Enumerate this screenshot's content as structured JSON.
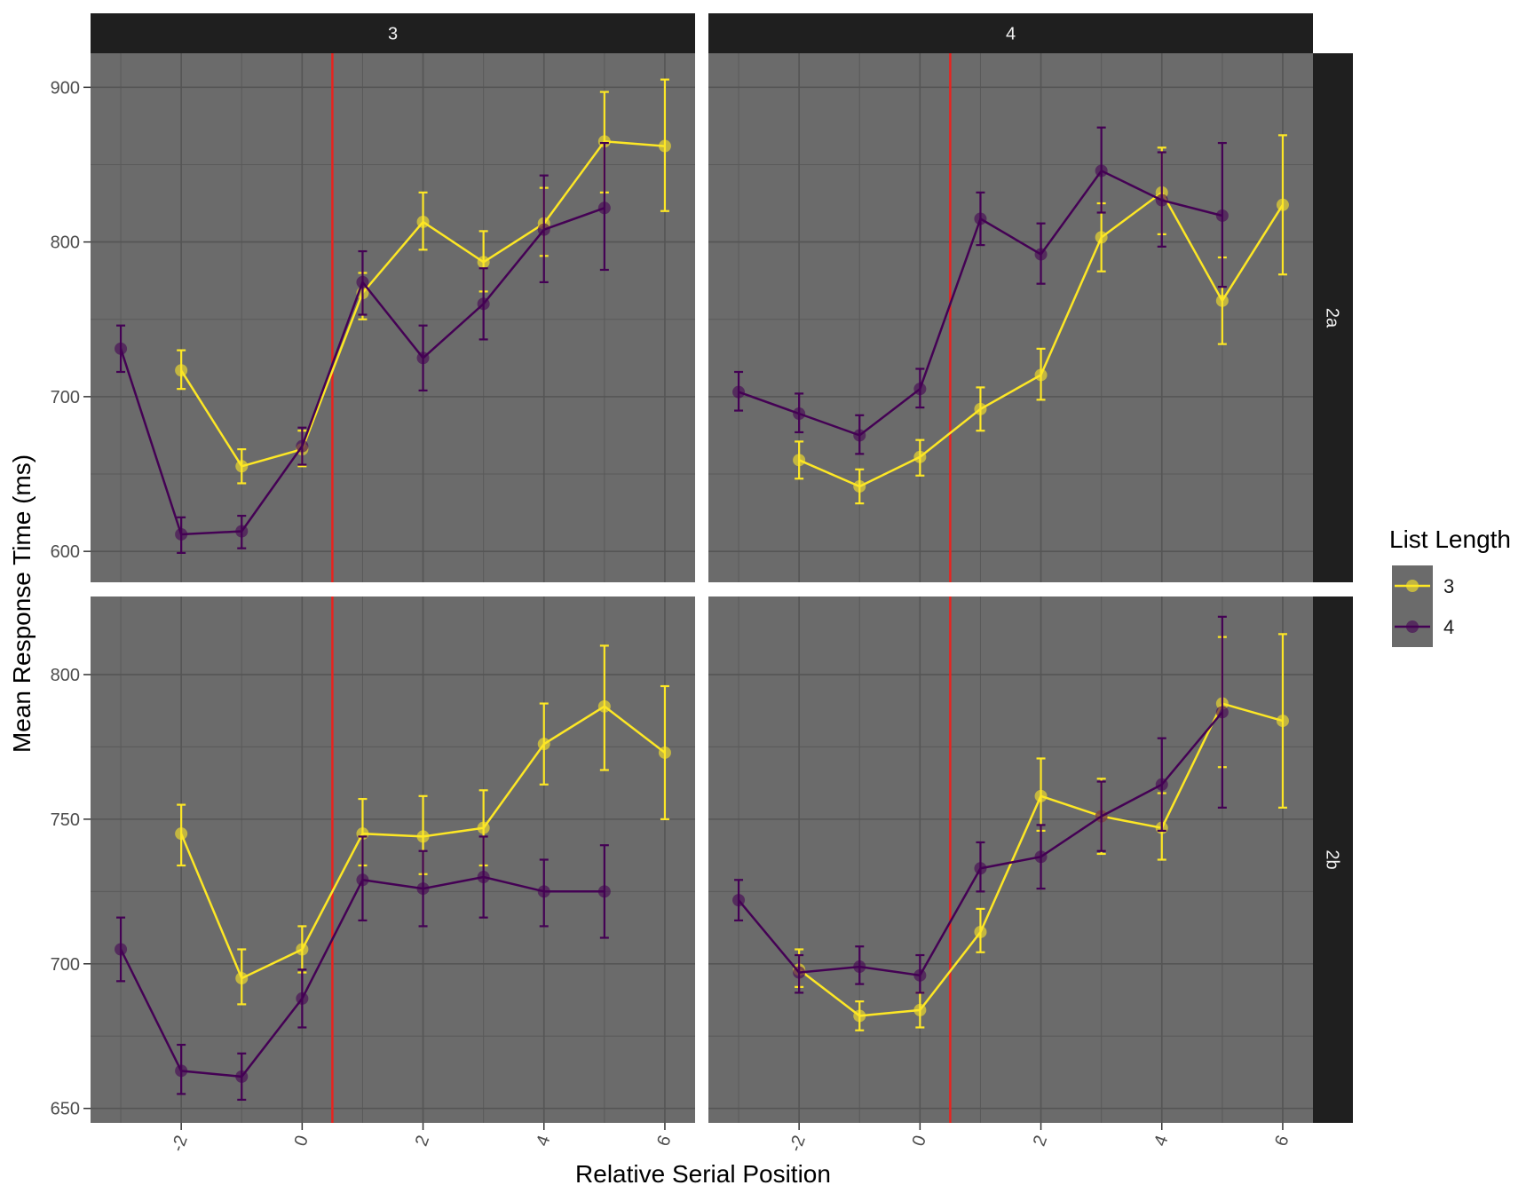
{
  "chart_data": {
    "type": "line",
    "xlabel": "Relative Serial Position",
    "ylabel": "Mean Response Time (ms)",
    "col_facets": [
      "3",
      "4"
    ],
    "row_facets": [
      "2a",
      "2b"
    ],
    "x_ticks": [
      "-2",
      "0",
      "2",
      "4",
      "6"
    ],
    "xlim": [
      -3.5,
      6.5
    ],
    "reference_line_x": 0.5,
    "legend": {
      "title": "List Length",
      "position": "right",
      "entries": [
        "3",
        "4"
      ]
    },
    "colors": {
      "3": "#FDE725",
      "4": "#440154",
      "reference": "#E8231E",
      "panel_bg": "#6B6B6B",
      "strip_bg": "#1F1F1F"
    },
    "rows": [
      {
        "label": "2a",
        "ylim": [
          580,
          922
        ],
        "y_ticks": [
          600,
          700,
          800,
          900
        ],
        "panels": [
          {
            "column": "3",
            "series": [
              {
                "name": "3",
                "x": [
                  -2,
                  -1,
                  0,
                  1,
                  2,
                  3,
                  4,
                  5,
                  6
                ],
                "y": [
                  717,
                  655,
                  666,
                  767,
                  813,
                  787,
                  812,
                  865,
                  862
                ],
                "lo": [
                  705,
                  644,
                  655,
                  750,
                  795,
                  768,
                  791,
                  832,
                  820
                ],
                "hi": [
                  730,
                  666,
                  678,
                  780,
                  832,
                  807,
                  835,
                  897,
                  905
                ]
              },
              {
                "name": "4",
                "x": [
                  -3,
                  -2,
                  -1,
                  0,
                  1,
                  2,
                  3,
                  4,
                  5
                ],
                "y": [
                  731,
                  611,
                  613,
                  668,
                  774,
                  725,
                  760,
                  808,
                  822
                ],
                "lo": [
                  716,
                  599,
                  602,
                  656,
                  753,
                  704,
                  737,
                  774,
                  782
                ],
                "hi": [
                  746,
                  622,
                  623,
                  680,
                  794,
                  746,
                  783,
                  843,
                  864
                ]
              }
            ]
          },
          {
            "column": "4",
            "series": [
              {
                "name": "3",
                "x": [
                  -2,
                  -1,
                  0,
                  1,
                  2,
                  3,
                  4,
                  5,
                  6
                ],
                "y": [
                  659,
                  642,
                  661,
                  692,
                  714,
                  803,
                  832,
                  762,
                  824
                ],
                "lo": [
                  647,
                  631,
                  649,
                  678,
                  698,
                  781,
                  805,
                  734,
                  779
                ],
                "hi": [
                  671,
                  653,
                  672,
                  706,
                  731,
                  825,
                  861,
                  790,
                  869
                ]
              },
              {
                "name": "4",
                "x": [
                  -3,
                  -2,
                  -1,
                  0,
                  1,
                  2,
                  3,
                  4,
                  5
                ],
                "y": [
                  703,
                  689,
                  675,
                  705,
                  815,
                  792,
                  846,
                  827,
                  817
                ],
                "lo": [
                  691,
                  677,
                  663,
                  693,
                  798,
                  773,
                  819,
                  797,
                  771
                ],
                "hi": [
                  716,
                  702,
                  688,
                  718,
                  832,
                  812,
                  874,
                  858,
                  864
                ]
              }
            ]
          }
        ]
      },
      {
        "label": "2b",
        "ylim": [
          645,
          827
        ],
        "y_ticks": [
          650,
          700,
          750,
          800
        ],
        "panels": [
          {
            "column": "3",
            "series": [
              {
                "name": "3",
                "x": [
                  -2,
                  -1,
                  0,
                  1,
                  2,
                  3,
                  4,
                  5,
                  6
                ],
                "y": [
                  745,
                  695,
                  705,
                  745,
                  744,
                  747,
                  776,
                  789,
                  773
                ],
                "lo": [
                  734,
                  686,
                  697,
                  734,
                  731,
                  734,
                  762,
                  767,
                  750
                ],
                "hi": [
                  755,
                  705,
                  713,
                  757,
                  758,
                  760,
                  790,
                  810,
                  796
                ]
              },
              {
                "name": "4",
                "x": [
                  -3,
                  -2,
                  -1,
                  0,
                  1,
                  2,
                  3,
                  4,
                  5
                ],
                "y": [
                  705,
                  663,
                  661,
                  688,
                  729,
                  726,
                  730,
                  725,
                  725
                ],
                "lo": [
                  694,
                  655,
                  653,
                  678,
                  715,
                  713,
                  716,
                  713,
                  709
                ],
                "hi": [
                  716,
                  672,
                  669,
                  698,
                  744,
                  739,
                  744,
                  736,
                  741
                ]
              }
            ]
          },
          {
            "column": "4",
            "series": [
              {
                "name": "3",
                "x": [
                  -2,
                  -1,
                  0,
                  1,
                  2,
                  3,
                  4,
                  5,
                  6
                ],
                "y": [
                  698,
                  682,
                  684,
                  711,
                  758,
                  751,
                  747,
                  790,
                  784
                ],
                "lo": [
                  692,
                  677,
                  678,
                  704,
                  746,
                  738,
                  736,
                  768,
                  754
                ],
                "hi": [
                  705,
                  687,
                  690,
                  719,
                  771,
                  764,
                  759,
                  813,
                  814
                ]
              },
              {
                "name": "4",
                "x": [
                  -3,
                  -2,
                  -1,
                  0,
                  1,
                  2,
                  3,
                  4,
                  5
                ],
                "y": [
                  722,
                  697,
                  699,
                  696,
                  733,
                  737,
                  751,
                  762,
                  787
                ],
                "lo": [
                  715,
                  690,
                  693,
                  690,
                  725,
                  726,
                  739,
                  746,
                  754
                ],
                "hi": [
                  729,
                  703,
                  706,
                  703,
                  742,
                  748,
                  763,
                  778,
                  820
                ]
              }
            ]
          }
        ]
      }
    ]
  }
}
